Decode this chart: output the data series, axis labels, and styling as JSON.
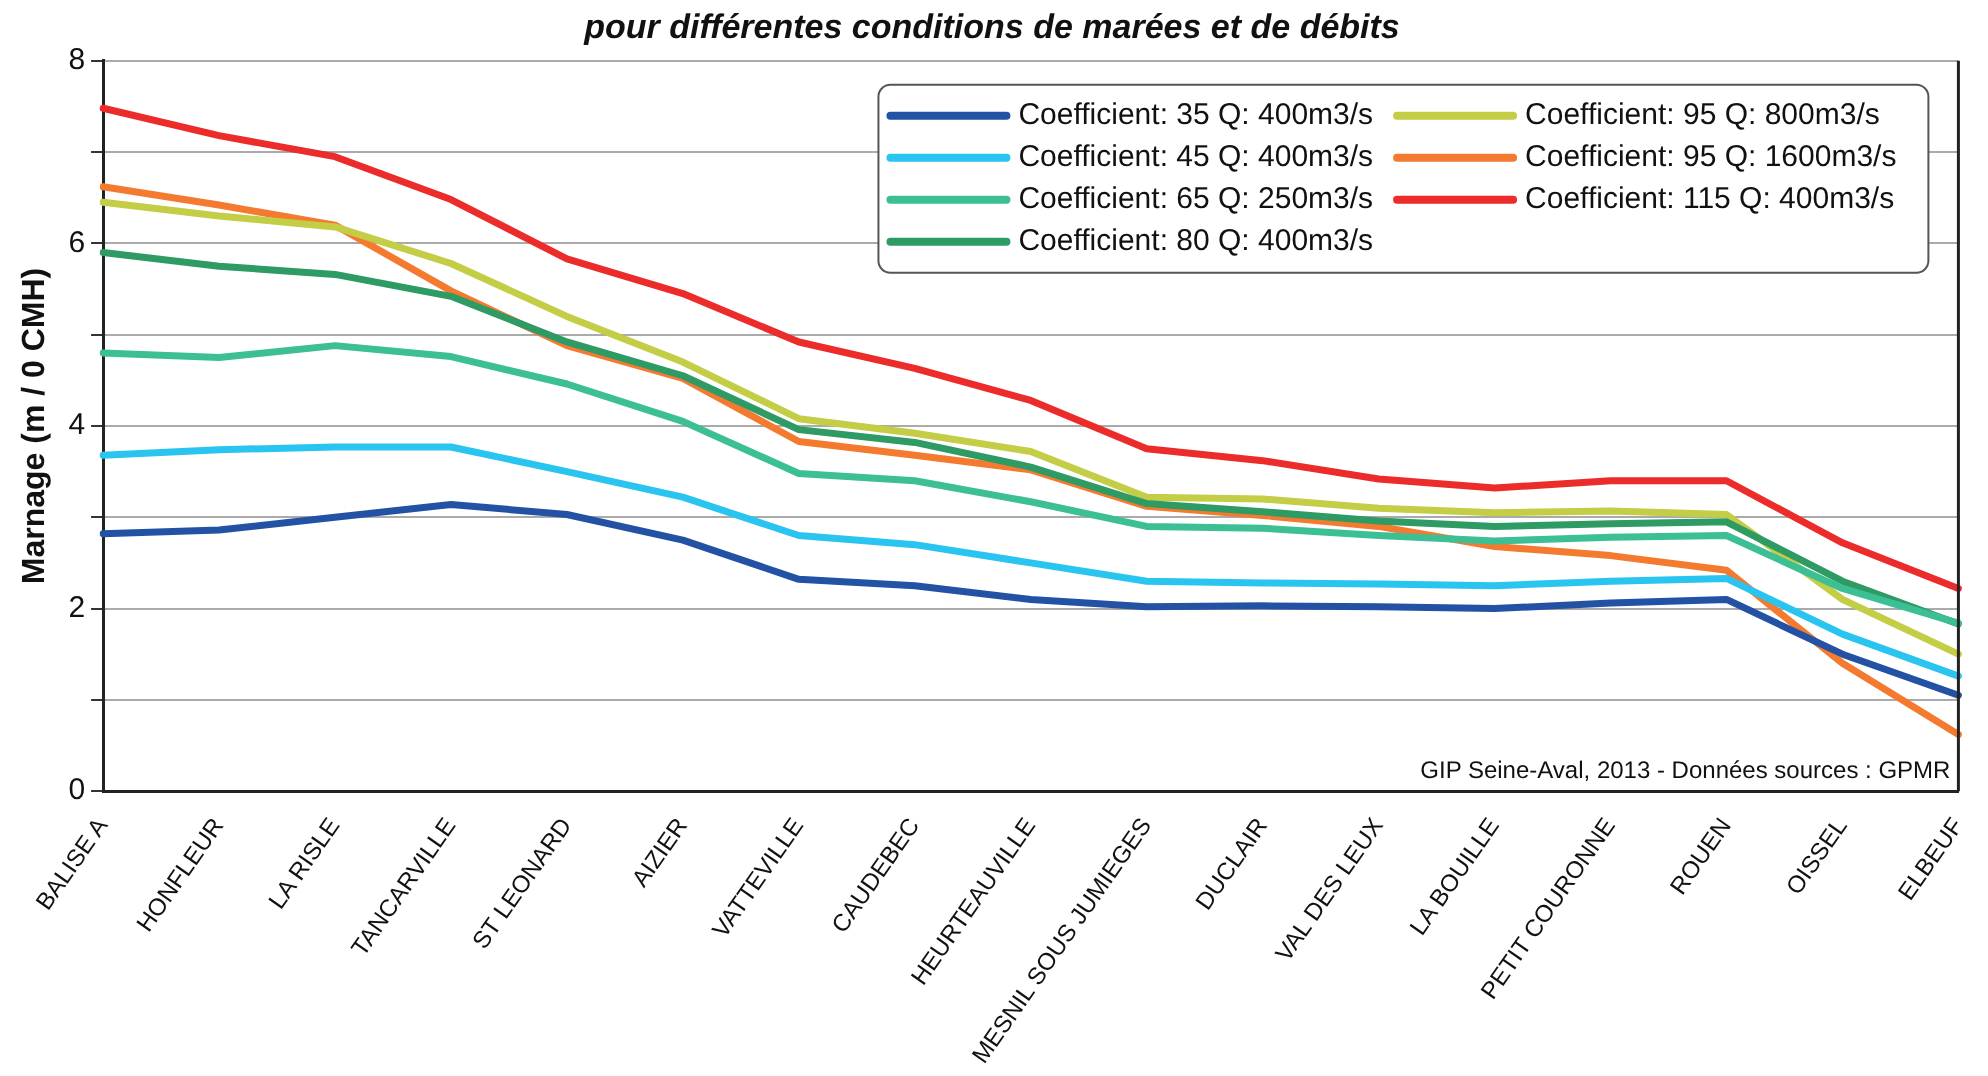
{
  "chart_data": {
    "type": "line",
    "title": "pour différentes conditions de marées et de débits",
    "ylabel": "Marnage (m / 0 CMH)",
    "categories": [
      "BALISE A",
      "HONFLEUR",
      "LA RISLE",
      "TANCARVILLE",
      "ST LEONARD",
      "AIZIER",
      "VATTEVILLE",
      "CAUDEBEC",
      "HEURTEAUVILLE",
      "MESNIL SOUS JUMIEGES",
      "DUCLAIR",
      "VAL DES LEUX",
      "LA BOUILLE",
      "PETIT COURONNE",
      "ROUEN",
      "OISSEL",
      "ELBEUF"
    ],
    "series": [
      {
        "name": "Coefficient: 35 Q: 400m3/s",
        "color": "#2352a4",
        "values": [
          2.82,
          2.86,
          3.0,
          3.14,
          3.03,
          2.75,
          2.32,
          2.25,
          2.1,
          2.02,
          2.03,
          2.02,
          2.0,
          2.06,
          2.1,
          1.5,
          1.05
        ]
      },
      {
        "name": "Coefficient: 45 Q: 400m3/s",
        "color": "#29c4f0",
        "values": [
          3.68,
          3.74,
          3.77,
          3.77,
          3.5,
          3.22,
          2.8,
          2.7,
          2.5,
          2.3,
          2.28,
          2.27,
          2.25,
          2.3,
          2.33,
          1.72,
          1.26
        ]
      },
      {
        "name": "Coefficient: 65 Q: 250m3/s",
        "color": "#3cbf94",
        "values": [
          4.8,
          4.75,
          4.88,
          4.76,
          4.46,
          4.05,
          3.48,
          3.4,
          3.17,
          2.9,
          2.88,
          2.8,
          2.74,
          2.78,
          2.8,
          2.22,
          1.84
        ]
      },
      {
        "name": "Coefficient: 80 Q: 400m3/s",
        "color": "#2e9a64",
        "values": [
          5.9,
          5.75,
          5.66,
          5.42,
          4.92,
          4.55,
          3.96,
          3.82,
          3.55,
          3.15,
          3.06,
          2.96,
          2.9,
          2.93,
          2.95,
          2.3,
          1.83
        ]
      },
      {
        "name": "Coefficient: 95 Q: 800m3/s",
        "color": "#c3cd45",
        "values": [
          6.45,
          6.3,
          6.18,
          5.78,
          5.2,
          4.7,
          4.08,
          3.92,
          3.72,
          3.22,
          3.2,
          3.1,
          3.05,
          3.07,
          3.03,
          2.1,
          1.5
        ]
      },
      {
        "name": "Coefficient: 95 Q: 1600m3/s",
        "color": "#f47a30",
        "values": [
          6.62,
          6.42,
          6.2,
          5.48,
          4.88,
          4.52,
          3.83,
          3.68,
          3.52,
          3.12,
          3.02,
          2.9,
          2.68,
          2.58,
          2.42,
          1.4,
          0.62
        ]
      },
      {
        "name": "Coefficient: 115 Q: 400m3/s",
        "color": "#ec2b2b",
        "values": [
          7.48,
          7.18,
          6.95,
          6.48,
          5.83,
          5.45,
          4.92,
          4.63,
          4.28,
          3.75,
          3.62,
          3.42,
          3.32,
          3.4,
          3.4,
          2.72,
          2.22
        ]
      }
    ],
    "ylim": [
      0,
      8
    ],
    "yticks": [
      0,
      {
        "value": 1,
        "label": null
      },
      2,
      {
        "value": 3,
        "label": null
      },
      4,
      {
        "value": 5,
        "label": null
      },
      6,
      {
        "value": 7,
        "label": null
      },
      8
    ],
    "grid": "y",
    "legend": "top right",
    "marker": "none",
    "line_style": "solid",
    "annotations": [
      "GIP Seine-Aval, 2013 - Données sources : GPMR"
    ]
  }
}
